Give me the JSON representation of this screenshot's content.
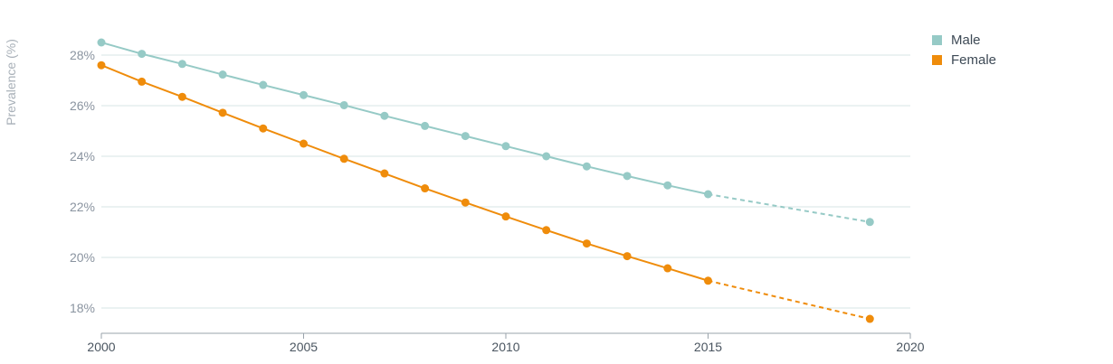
{
  "chart_data": {
    "type": "line",
    "ylabel": "Prevalence (%)",
    "xlabel": "",
    "xlim": [
      2000,
      2020
    ],
    "ylim": [
      17,
      29
    ],
    "x_ticks": [
      "2000",
      "2005",
      "2010",
      "2015",
      "2020"
    ],
    "y_ticks": [
      "18%",
      "20%",
      "22%",
      "24%",
      "26%",
      "28%"
    ],
    "y_tick_values": [
      18,
      20,
      22,
      24,
      26,
      28
    ],
    "x_tick_values": [
      2000,
      2005,
      2010,
      2015,
      2020
    ],
    "grid": true,
    "legend_position": "top-right",
    "series": [
      {
        "name": "Male",
        "color": "#96cac6",
        "x": [
          2000,
          2001,
          2002,
          2003,
          2004,
          2005,
          2006,
          2007,
          2008,
          2009,
          2010,
          2011,
          2012,
          2013,
          2014,
          2015,
          2019
        ],
        "values": [
          28.5,
          28.05,
          27.65,
          27.23,
          26.82,
          26.42,
          26.02,
          25.6,
          25.2,
          24.8,
          24.4,
          24.0,
          23.6,
          23.22,
          22.85,
          22.5,
          21.4
        ],
        "dashed_from_x": 2015
      },
      {
        "name": "Female",
        "color": "#ef8c0b",
        "x": [
          2000,
          2001,
          2002,
          2003,
          2004,
          2005,
          2006,
          2007,
          2008,
          2009,
          2010,
          2011,
          2012,
          2013,
          2014,
          2015,
          2019
        ],
        "values": [
          27.6,
          26.95,
          26.35,
          25.72,
          25.1,
          24.5,
          23.9,
          23.32,
          22.73,
          22.17,
          21.62,
          21.08,
          20.55,
          20.05,
          19.57,
          19.08,
          17.57
        ],
        "dashed_from_x": 2015
      }
    ]
  }
}
